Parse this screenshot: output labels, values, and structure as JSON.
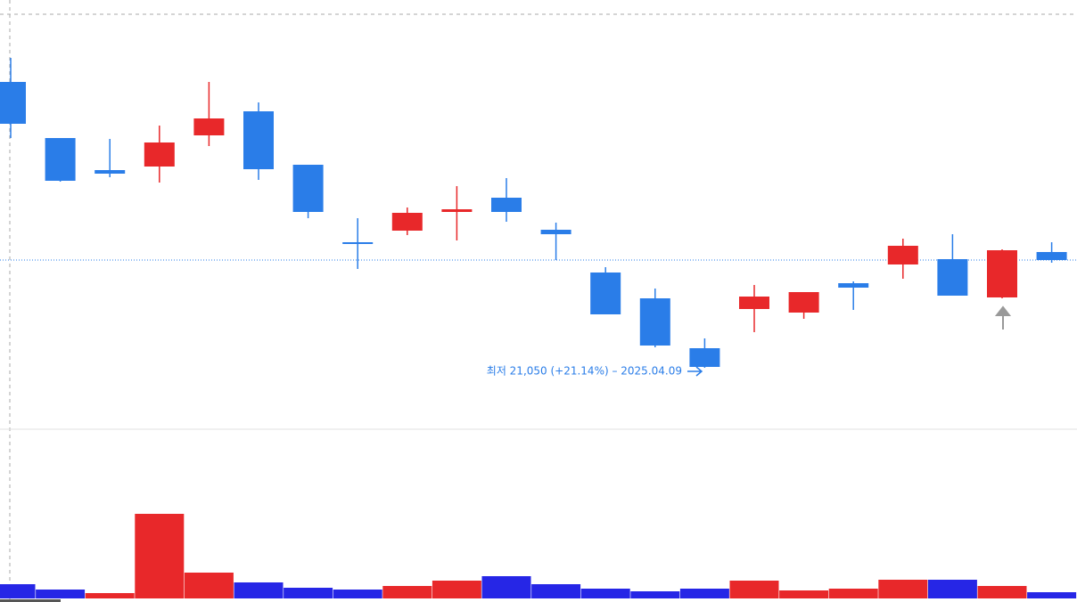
{
  "chart_data": [
    {
      "type": "candlestick",
      "annotation": "최저 21,050 (+21.14%) – 2025.04.09",
      "open": [
        24260,
        23630,
        23270,
        23310,
        23660,
        23930,
        23330,
        22460,
        22590,
        22800,
        22960,
        22600,
        22120,
        21830,
        21270,
        21710,
        21670,
        22000,
        22210,
        22270,
        21840,
        22350
      ],
      "high": [
        24530,
        23630,
        23620,
        23770,
        24260,
        24030,
        23330,
        22730,
        22850,
        23090,
        23180,
        22680,
        22180,
        21940,
        21380,
        21980,
        21900,
        22020,
        22500,
        22550,
        22380,
        22460
      ],
      "low": [
        23630,
        23140,
        23190,
        23130,
        23540,
        23160,
        22730,
        22160,
        22540,
        22480,
        22690,
        22260,
        21650,
        21280,
        21050,
        21450,
        21600,
        21700,
        22050,
        21860,
        21830,
        22230
      ],
      "close": [
        23790,
        23150,
        23230,
        23580,
        23850,
        23280,
        22800,
        22440,
        22790,
        22830,
        22800,
        22550,
        21650,
        21300,
        21060,
        21850,
        21900,
        21950,
        22420,
        21860,
        22370,
        22260
      ],
      "up_color": "#e8282a",
      "down_color": "#2a7de8",
      "ylim": [
        20360,
        25180
      ]
    },
    {
      "type": "bar",
      "values": [
        16,
        10,
        6,
        95,
        29,
        18,
        12,
        10,
        14,
        20,
        25,
        16,
        11,
        8,
        11,
        20,
        9,
        11,
        21,
        21,
        14,
        7
      ],
      "colors": [
        "#2626e6",
        "#2626e6",
        "#e8282a",
        "#e8282a",
        "#e8282a",
        "#2626e6",
        "#2626e6",
        "#2626e6",
        "#e8282a",
        "#e8282a",
        "#2626e6",
        "#2626e6",
        "#2626e6",
        "#2626e6",
        "#2626e6",
        "#e8282a",
        "#e8282a",
        "#e8282a",
        "#e8282a",
        "#2626e6",
        "#e8282a",
        "#2626e6"
      ],
      "ylim": [
        0,
        100
      ]
    }
  ]
}
